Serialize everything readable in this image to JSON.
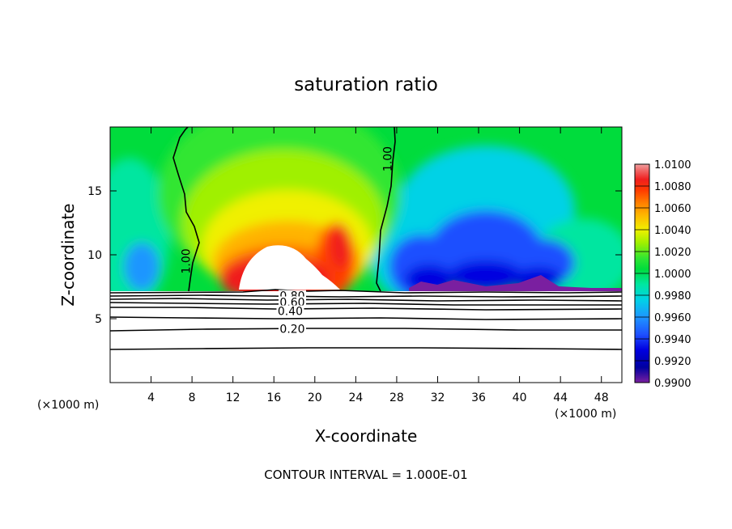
{
  "chart_data": {
    "type": "heatmap",
    "title": "saturation ratio",
    "xlabel": "X-coordinate",
    "ylabel": "Z-coordinate",
    "x_unit_left": "(×1000 m)",
    "x_unit_right": "(×1000 m)",
    "xlim": [
      0,
      50
    ],
    "ylim": [
      0,
      20
    ],
    "x_ticks": [
      "4",
      "8",
      "12",
      "16",
      "20",
      "24",
      "28",
      "32",
      "36",
      "40",
      "44",
      "48"
    ],
    "y_ticks": [
      "5",
      "10",
      "15"
    ],
    "colorbar": {
      "labels": [
        "1.0100",
        "1.0080",
        "1.0060",
        "1.0040",
        "1.0020",
        "1.0000",
        "0.9980",
        "0.9960",
        "0.9940",
        "0.9920",
        "0.9900"
      ],
      "min": 0.99,
      "max": 1.01
    },
    "contour_labels": [
      {
        "text": "1.00",
        "x": 7.8,
        "z": 9.5
      },
      {
        "text": "1.00",
        "x": 27.5,
        "z": 17.5
      },
      {
        "text": "0.80",
        "x": 17.8,
        "z": 6.8
      },
      {
        "text": "0.60",
        "x": 17.8,
        "z": 6.3
      },
      {
        "text": "0.40",
        "x": 17.6,
        "z": 5.6
      },
      {
        "text": "0.20",
        "x": 17.8,
        "z": 4.2
      }
    ],
    "contour_interval_note": "CONTOUR INTERVAL = 1.000E-01",
    "grid": false,
    "legend_position": "right"
  },
  "colors": {
    "palette": [
      "#7a1fa0",
      "#0000a0",
      "#0000e0",
      "#1e50ff",
      "#1e96ff",
      "#00d2e6",
      "#00e6a0",
      "#00dc3c",
      "#32e632",
      "#a0f000",
      "#f0f000",
      "#ffb400",
      "#ff7800",
      "#ff3c00",
      "#f01e1e",
      "#f06464",
      "#f0a0a0"
    ]
  }
}
